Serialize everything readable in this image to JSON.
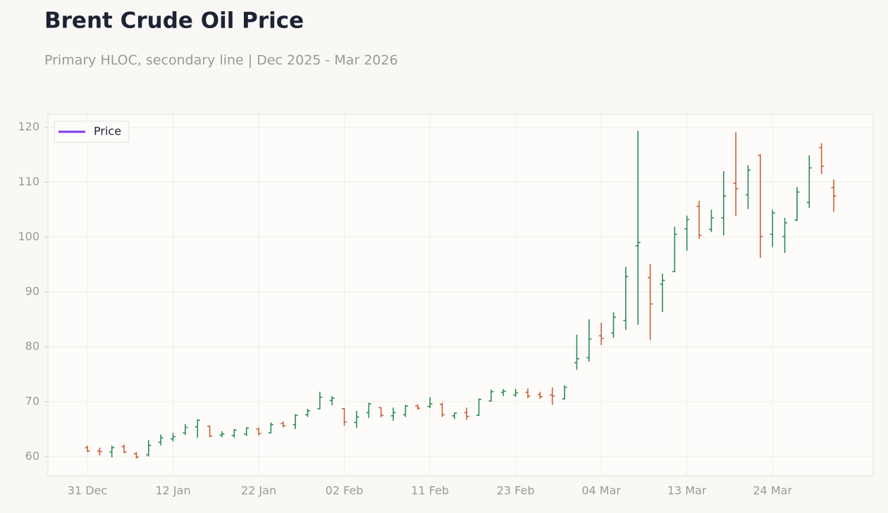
{
  "chart_data": {
    "type": "ohlc",
    "title": "Brent Crude Oil Price",
    "subtitle": "Primary HLOC, secondary line | Dec 2025 - Mar 2026",
    "categories": [
      "31 Dec",
      null,
      null,
      null,
      null,
      null,
      null,
      "12 Jan",
      null,
      null,
      null,
      null,
      null,
      null,
      "22 Jan",
      null,
      null,
      null,
      null,
      null,
      null,
      "02 Feb",
      null,
      null,
      null,
      null,
      null,
      null,
      "11 Feb",
      null,
      null,
      null,
      null,
      null,
      null,
      "23 Feb",
      null,
      null,
      null,
      null,
      null,
      null,
      "04 Mar",
      null,
      null,
      null,
      null,
      null,
      null,
      "13 Mar",
      null,
      null,
      null,
      null,
      null,
      null,
      "24 Mar",
      null,
      null,
      null,
      null,
      null
    ],
    "series": [
      {
        "name": "Price",
        "color": "#7c3aed",
        "up_color": "#2e8b57",
        "down_color": "#c8603a",
        "open": [
          61.6,
          61,
          60.8,
          61.8,
          60.5,
          60.3,
          62.6,
          63.2,
          64.3,
          65.4,
          65.5,
          63.9,
          63.8,
          64.1,
          65,
          64.3,
          66,
          65.8,
          67.6,
          68.7,
          70.2,
          68.7,
          66.2,
          68,
          68.9,
          67.4,
          67.6,
          69.2,
          69.1,
          69.5,
          67.4,
          68,
          67.5,
          70.1,
          71.7,
          71.2,
          71.7,
          71.3,
          71.2,
          70.5,
          77.1,
          78,
          82,
          82.5,
          84.8,
          98.4,
          92.6,
          91.4,
          93.7,
          101.5,
          105.6,
          101.4,
          103.5,
          109.8,
          107.7,
          114.9,
          100.5,
          100.1,
          103.1,
          106.3,
          116.3,
          109
        ],
        "high": [
          62,
          61.6,
          62,
          62.2,
          60.8,
          63,
          64,
          64.3,
          65.9,
          66.8,
          65.6,
          64.6,
          65,
          65.3,
          65.3,
          66.2,
          66.4,
          67.7,
          68.7,
          71.8,
          71,
          68.8,
          68.3,
          69.8,
          69,
          68.9,
          69.4,
          69.5,
          70.8,
          69.8,
          68,
          68.9,
          70.6,
          72.2,
          72.3,
          72.3,
          72.4,
          71.8,
          72.6,
          73,
          82.2,
          85,
          84.4,
          86.3,
          94.6,
          119.4,
          95.1,
          93.3,
          101.9,
          103.9,
          106.6,
          105,
          112,
          119.1,
          113.1,
          115.1,
          105,
          103.5,
          109.1,
          114.9,
          117.1,
          110.5
        ],
        "low": [
          60.8,
          60.2,
          59.8,
          60.6,
          59.6,
          60,
          62,
          62.7,
          63.9,
          63.4,
          63.5,
          63.5,
          63.4,
          63.7,
          63.8,
          64.2,
          65.3,
          65,
          67.2,
          68.6,
          69.3,
          65.6,
          65.2,
          67,
          67.1,
          66.5,
          67.2,
          68.5,
          68.8,
          67.2,
          66.8,
          66.7,
          67.4,
          70,
          71,
          70.9,
          70.6,
          70.5,
          69.4,
          70.4,
          75.8,
          77.3,
          80.3,
          81.6,
          83.1,
          84,
          81.2,
          86.3,
          93.6,
          97.5,
          99.7,
          100.9,
          100.3,
          103.8,
          105.1,
          96.2,
          98.2,
          97.1,
          102.9,
          105.3,
          111.5,
          104.6
        ],
        "close": [
          61,
          60.9,
          61.6,
          60.8,
          59.9,
          62,
          63.4,
          63.6,
          65.3,
          66.6,
          63.7,
          64.1,
          64.8,
          65.2,
          64.2,
          65.8,
          65.6,
          67.5,
          68.3,
          70.8,
          70.6,
          66.3,
          67.2,
          69.6,
          67.5,
          68,
          69.2,
          68.8,
          69.6,
          67.6,
          67.9,
          67.3,
          70.4,
          71.8,
          71.9,
          71.6,
          71,
          70.9,
          71,
          72.6,
          77.8,
          81.4,
          81.5,
          85.4,
          92.8,
          99,
          87.8,
          92.1,
          100.5,
          103.2,
          100.3,
          103.5,
          107.5,
          108.8,
          112.2,
          100.1,
          104.4,
          102.6,
          108.2,
          112.6,
          112.9,
          107.5
        ]
      }
    ],
    "ylim": [
      56.5,
      122.4
    ],
    "yticks": [
      60,
      70,
      80,
      90,
      100,
      110,
      120
    ],
    "grid": true,
    "legend": "upper left"
  }
}
